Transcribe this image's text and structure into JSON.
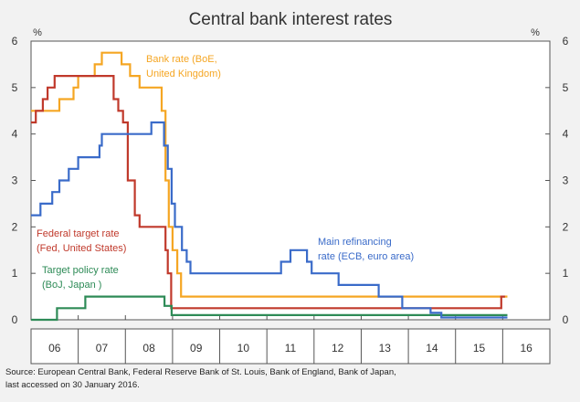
{
  "chart_data": {
    "type": "line",
    "title": "Central bank interest rates",
    "unit_left": "%",
    "unit_right": "%",
    "ylim": [
      0,
      6
    ],
    "y_ticks": [
      "0",
      "1",
      "2",
      "3",
      "4",
      "5",
      "6"
    ],
    "x_ticks": [
      "06",
      "07",
      "08",
      "09",
      "10",
      "11",
      "12",
      "13",
      "14",
      "15",
      "16"
    ],
    "xlim": [
      2006.0,
      2017.0
    ],
    "grid": false,
    "source_lines": [
      "Source: European Central Bank, Federal Reserve Bank of St. Louis, Bank of England, Bank of Japan,",
      "last accessed on 30 January 2016."
    ],
    "series": [
      {
        "color": "#f5a623",
        "label_lines": [
          "Bank rate (BoE,",
          "United Kingdom)"
        ],
        "points": [
          [
            2006.0,
            4.5
          ],
          [
            2006.6,
            4.75
          ],
          [
            2006.9,
            5.0
          ],
          [
            2007.0,
            5.25
          ],
          [
            2007.35,
            5.5
          ],
          [
            2007.5,
            5.75
          ],
          [
            2007.92,
            5.5
          ],
          [
            2008.1,
            5.25
          ],
          [
            2008.3,
            5.0
          ],
          [
            2008.75,
            5.0
          ],
          [
            2008.77,
            4.5
          ],
          [
            2008.85,
            3.0
          ],
          [
            2008.92,
            2.0
          ],
          [
            2009.0,
            1.5
          ],
          [
            2009.1,
            1.0
          ],
          [
            2009.18,
            0.5
          ],
          [
            2016.1,
            0.5
          ]
        ]
      },
      {
        "color": "#c0392b",
        "label_lines": [
          "Federal target rate",
          "(Fed, United States)"
        ],
        "points": [
          [
            2006.0,
            4.25
          ],
          [
            2006.1,
            4.5
          ],
          [
            2006.25,
            4.75
          ],
          [
            2006.35,
            5.0
          ],
          [
            2006.5,
            5.25
          ],
          [
            2007.7,
            5.25
          ],
          [
            2007.75,
            4.75
          ],
          [
            2007.85,
            4.5
          ],
          [
            2007.95,
            4.25
          ],
          [
            2008.05,
            3.0
          ],
          [
            2008.2,
            2.25
          ],
          [
            2008.3,
            2.0
          ],
          [
            2008.8,
            2.0
          ],
          [
            2008.85,
            1.5
          ],
          [
            2008.9,
            1.0
          ],
          [
            2008.97,
            0.25
          ],
          [
            2015.95,
            0.25
          ],
          [
            2015.97,
            0.5
          ],
          [
            2016.05,
            0.5
          ]
        ]
      },
      {
        "color": "#2e8b57",
        "label_lines": [
          "Target policy rate",
          "(BoJ, Japan )"
        ],
        "points": [
          [
            2006.0,
            0.0
          ],
          [
            2006.55,
            0.0
          ],
          [
            2006.55,
            0.25
          ],
          [
            2007.15,
            0.25
          ],
          [
            2007.15,
            0.5
          ],
          [
            2008.83,
            0.5
          ],
          [
            2008.83,
            0.3
          ],
          [
            2008.98,
            0.3
          ],
          [
            2008.98,
            0.1
          ],
          [
            2016.1,
            0.1
          ]
        ]
      },
      {
        "color": "#3a6bc9",
        "label_lines": [
          "Main refinancing",
          "rate (ECB, euro area)"
        ],
        "points": [
          [
            2006.0,
            2.25
          ],
          [
            2006.2,
            2.5
          ],
          [
            2006.45,
            2.75
          ],
          [
            2006.6,
            3.0
          ],
          [
            2006.8,
            3.25
          ],
          [
            2007.0,
            3.5
          ],
          [
            2007.45,
            3.75
          ],
          [
            2007.5,
            4.0
          ],
          [
            2008.52,
            4.0
          ],
          [
            2008.55,
            4.25
          ],
          [
            2008.78,
            4.25
          ],
          [
            2008.82,
            3.75
          ],
          [
            2008.9,
            3.25
          ],
          [
            2008.98,
            2.5
          ],
          [
            2009.05,
            2.0
          ],
          [
            2009.2,
            1.5
          ],
          [
            2009.3,
            1.25
          ],
          [
            2009.38,
            1.0
          ],
          [
            2011.28,
            1.0
          ],
          [
            2011.3,
            1.25
          ],
          [
            2011.5,
            1.5
          ],
          [
            2011.83,
            1.5
          ],
          [
            2011.85,
            1.25
          ],
          [
            2011.95,
            1.0
          ],
          [
            2012.5,
            1.0
          ],
          [
            2012.52,
            0.75
          ],
          [
            2013.35,
            0.75
          ],
          [
            2013.37,
            0.5
          ],
          [
            2013.85,
            0.5
          ],
          [
            2013.87,
            0.25
          ],
          [
            2014.45,
            0.25
          ],
          [
            2014.47,
            0.15
          ],
          [
            2014.68,
            0.15
          ],
          [
            2014.7,
            0.05
          ],
          [
            2016.1,
            0.05
          ]
        ]
      }
    ]
  }
}
